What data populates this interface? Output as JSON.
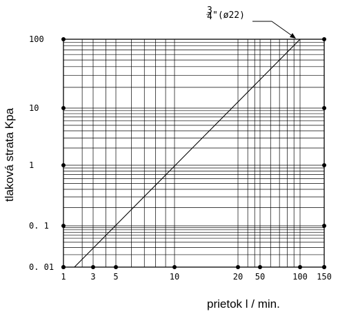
{
  "chart_data": {
    "type": "line",
    "xlabel": "prietok l / min.",
    "ylabel": "tlaková strata Kpa",
    "x_scale": "log",
    "y_scale": "log",
    "xlim": [
      1,
      150
    ],
    "ylim": [
      0.01,
      100
    ],
    "x_ticks": [
      1,
      3,
      5,
      10,
      20,
      50,
      100,
      150
    ],
    "x_tick_labels": [
      "1",
      "3",
      "5",
      "10",
      "20",
      "50",
      "100",
      "150"
    ],
    "y_ticks": [
      0.01,
      0.1,
      1,
      10,
      100
    ],
    "y_tick_labels": [
      "0. 01",
      "0. 1",
      "1",
      "10",
      "100"
    ],
    "grid": true,
    "series": [
      {
        "name": "3/4\"(ø22)",
        "x": [
          1.5,
          100
        ],
        "y": [
          0.01,
          100
        ]
      }
    ],
    "annotations": [
      {
        "text": "3/4\"(ø22)",
        "points_to_series": 0
      }
    ]
  }
}
